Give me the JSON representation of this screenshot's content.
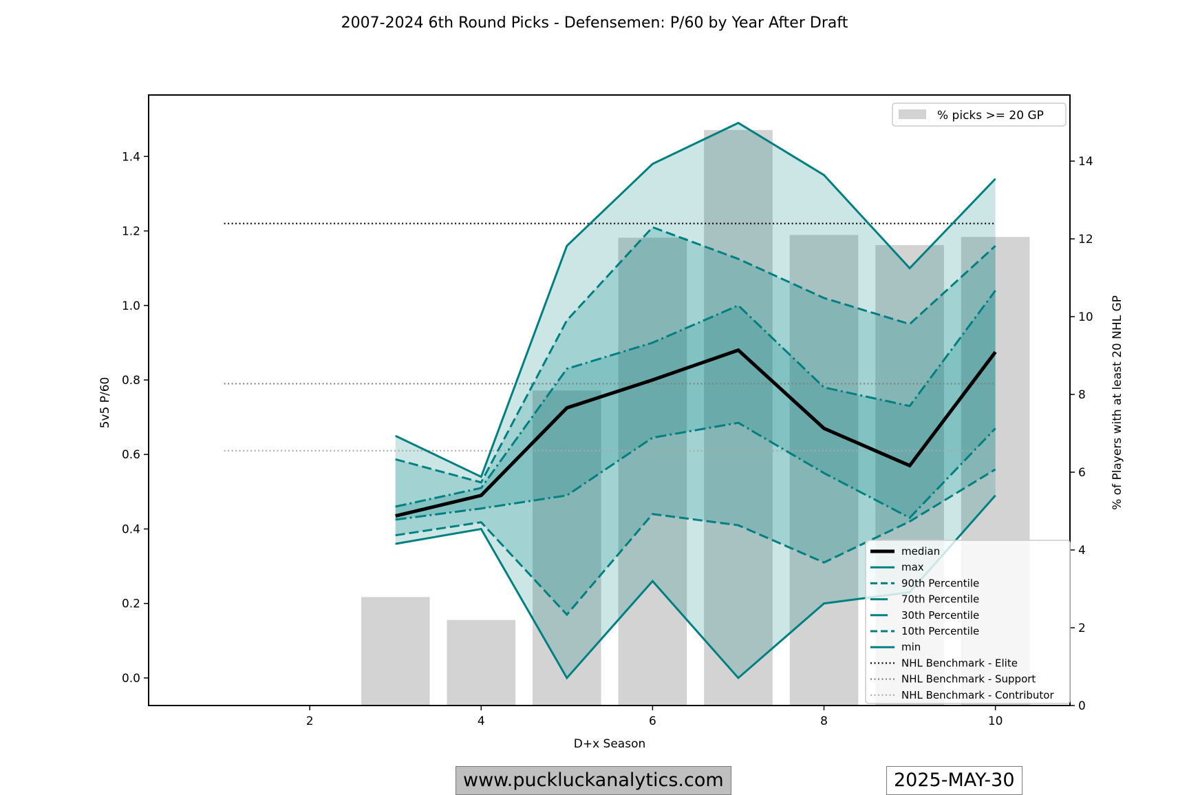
{
  "chart_data": {
    "type": "line",
    "title": "2007-2024 6th Round Picks - Defensemen: P/60 by Year After Draft",
    "xlabel": "D+x Season",
    "ylabel": "5v5 P/60",
    "y2label": "% of Players with at least 20 NHL GP",
    "xlim": [
      0.12,
      10.87
    ],
    "ylim": [
      -0.074,
      1.565
    ],
    "y2lim": [
      0,
      15.7
    ],
    "xticks": [
      2,
      4,
      6,
      8,
      10
    ],
    "yticks": [
      "0.0",
      "0.2",
      "0.4",
      "0.6",
      "0.8",
      "1.0",
      "1.2",
      "1.4"
    ],
    "ytick_values": [
      0.0,
      0.2,
      0.4,
      0.6,
      0.8,
      1.0,
      1.2,
      1.4
    ],
    "y2ticks": [
      0,
      2,
      4,
      6,
      8,
      10,
      12,
      14
    ],
    "x": [
      3,
      4,
      5,
      6,
      7,
      8,
      9,
      10
    ],
    "bars": {
      "name": "% picks >= 20 GP",
      "color": "#d3d3d3",
      "values": [
        2.79,
        2.2,
        8.1,
        12.03,
        14.8,
        12.1,
        11.84,
        12.05
      ]
    },
    "series": [
      {
        "name": "median",
        "style": "solid",
        "color": "#000000",
        "values": [
          0.435,
          0.49,
          0.725,
          0.8,
          0.88,
          0.67,
          0.57,
          0.875
        ]
      },
      {
        "name": "max",
        "style": "solid",
        "color": "#008080",
        "values": [
          0.65,
          0.54,
          1.16,
          1.38,
          1.49,
          1.35,
          1.1,
          1.34
        ]
      },
      {
        "name": "90th Percentile",
        "style": "dashed",
        "color": "#008080",
        "values": [
          0.587,
          0.525,
          0.96,
          1.21,
          1.125,
          1.02,
          0.95,
          1.16
        ]
      },
      {
        "name": "70th Percentile",
        "style": "dashdot",
        "color": "#008080",
        "values": [
          0.46,
          0.51,
          0.83,
          0.9,
          1.0,
          0.78,
          0.73,
          1.04
        ]
      },
      {
        "name": "30th Percentile",
        "style": "dashdot",
        "color": "#008080",
        "values": [
          0.425,
          0.455,
          0.49,
          0.645,
          0.685,
          0.55,
          0.43,
          0.67
        ]
      },
      {
        "name": "10th Percentile",
        "style": "dashed",
        "color": "#008080",
        "values": [
          0.383,
          0.418,
          0.17,
          0.44,
          0.41,
          0.31,
          0.42,
          0.56
        ]
      },
      {
        "name": "min",
        "style": "solid",
        "color": "#008080",
        "values": [
          0.36,
          0.4,
          0.0,
          0.26,
          0.0,
          0.2,
          0.23,
          0.49
        ]
      }
    ],
    "benchmarks": [
      {
        "name": "NHL Benchmark - Elite",
        "value": 1.22,
        "color": "#000000"
      },
      {
        "name": "NHL Benchmark - Support",
        "value": 0.79,
        "color": "#808080"
      },
      {
        "name": "NHL Benchmark - Contributor",
        "value": 0.61,
        "color": "#a9a9a9"
      }
    ],
    "benchmark_x_range": [
      1,
      10
    ],
    "legend_main": "bottom-right",
    "legend_bars": "top-right",
    "fill_color": "#008080"
  },
  "footer": {
    "site": "www.puckluckanalytics.com",
    "date": "2025-MAY-30"
  }
}
